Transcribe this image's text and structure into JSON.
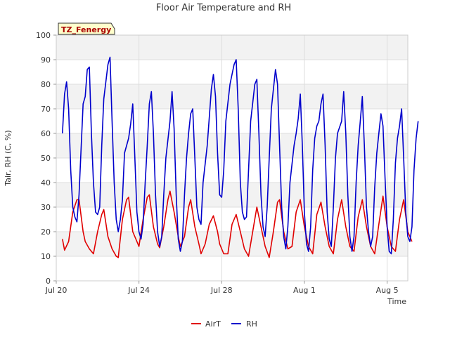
{
  "chart_data": {
    "type": "line",
    "title": "Floor Air Temperature and RH",
    "xlabel": "Time",
    "ylabel": "Tair, RH (C, %)",
    "ylim": [
      0,
      100
    ],
    "xlim_days": [
      0,
      17
    ],
    "yticks": [
      0,
      10,
      20,
      30,
      40,
      50,
      60,
      70,
      80,
      90,
      100
    ],
    "xticks": [
      {
        "day": 0,
        "label": "Jul 20"
      },
      {
        "day": 4,
        "label": "Jul 24"
      },
      {
        "day": 8,
        "label": "Jul 28"
      },
      {
        "day": 12,
        "label": "Aug 1"
      },
      {
        "day": 16,
        "label": "Aug 5"
      }
    ],
    "annotation": "TZ_Fenergy",
    "legend_position": "bottom-center",
    "grid": true,
    "series": [
      {
        "name": "AirT",
        "color": "#e00000",
        "points": [
          [
            0.3,
            17
          ],
          [
            0.4,
            12.5
          ],
          [
            0.6,
            16
          ],
          [
            0.8,
            28
          ],
          [
            1.0,
            33
          ],
          [
            1.1,
            33
          ],
          [
            1.3,
            20
          ],
          [
            1.4,
            16
          ],
          [
            1.6,
            13
          ],
          [
            1.8,
            11
          ],
          [
            2.0,
            20
          ],
          [
            2.2,
            27
          ],
          [
            2.3,
            29
          ],
          [
            2.5,
            18
          ],
          [
            2.7,
            13
          ],
          [
            2.9,
            10
          ],
          [
            3.0,
            9.5
          ],
          [
            3.2,
            25
          ],
          [
            3.4,
            33
          ],
          [
            3.5,
            34
          ],
          [
            3.7,
            20
          ],
          [
            3.9,
            16
          ],
          [
            4.0,
            14
          ],
          [
            4.2,
            25
          ],
          [
            4.4,
            34
          ],
          [
            4.5,
            35
          ],
          [
            4.7,
            22
          ],
          [
            4.9,
            15
          ],
          [
            5.0,
            13.5
          ],
          [
            5.2,
            22
          ],
          [
            5.4,
            33
          ],
          [
            5.5,
            36.5
          ],
          [
            5.7,
            28
          ],
          [
            5.9,
            18
          ],
          [
            6.0,
            14
          ],
          [
            6.2,
            18
          ],
          [
            6.4,
            30
          ],
          [
            6.5,
            33
          ],
          [
            6.7,
            22
          ],
          [
            6.9,
            15
          ],
          [
            7.0,
            11
          ],
          [
            7.2,
            15
          ],
          [
            7.4,
            23
          ],
          [
            7.6,
            26.5
          ],
          [
            7.8,
            20
          ],
          [
            7.9,
            15
          ],
          [
            8.1,
            11
          ],
          [
            8.3,
            11
          ],
          [
            8.5,
            23
          ],
          [
            8.7,
            27
          ],
          [
            8.9,
            20
          ],
          [
            9.1,
            13
          ],
          [
            9.3,
            10
          ],
          [
            9.5,
            20
          ],
          [
            9.7,
            30
          ],
          [
            9.9,
            22
          ],
          [
            10.1,
            14
          ],
          [
            10.3,
            9.5
          ],
          [
            10.5,
            20
          ],
          [
            10.7,
            32
          ],
          [
            10.8,
            33
          ],
          [
            11.0,
            20
          ],
          [
            11.2,
            13
          ],
          [
            11.4,
            14
          ],
          [
            11.6,
            28
          ],
          [
            11.8,
            33
          ],
          [
            12.0,
            22
          ],
          [
            12.2,
            14
          ],
          [
            12.4,
            11
          ],
          [
            12.6,
            27
          ],
          [
            12.8,
            32
          ],
          [
            13.0,
            22
          ],
          [
            13.2,
            14
          ],
          [
            13.4,
            11
          ],
          [
            13.6,
            25
          ],
          [
            13.8,
            33
          ],
          [
            14.0,
            22
          ],
          [
            14.2,
            14
          ],
          [
            14.4,
            12
          ],
          [
            14.6,
            26
          ],
          [
            14.8,
            33
          ],
          [
            15.0,
            22
          ],
          [
            15.2,
            14
          ],
          [
            15.4,
            11
          ],
          [
            15.6,
            23
          ],
          [
            15.8,
            34.5
          ],
          [
            16.0,
            22
          ],
          [
            16.2,
            14
          ],
          [
            16.4,
            12
          ],
          [
            16.6,
            25
          ],
          [
            16.8,
            33
          ],
          [
            17.0,
            20
          ],
          [
            17.2,
            16
          ]
        ]
      },
      {
        "name": "RH",
        "color": "#0000cc",
        "points": [
          [
            0.3,
            60
          ],
          [
            0.4,
            76
          ],
          [
            0.5,
            81
          ],
          [
            0.6,
            70
          ],
          [
            0.7,
            45
          ],
          [
            0.8,
            30
          ],
          [
            0.9,
            26
          ],
          [
            1.0,
            24
          ],
          [
            1.1,
            35
          ],
          [
            1.3,
            72
          ],
          [
            1.4,
            75
          ],
          [
            1.5,
            86
          ],
          [
            1.6,
            87
          ],
          [
            1.7,
            60
          ],
          [
            1.8,
            40
          ],
          [
            1.9,
            28
          ],
          [
            2.0,
            27
          ],
          [
            2.1,
            30
          ],
          [
            2.2,
            55
          ],
          [
            2.3,
            74
          ],
          [
            2.5,
            88
          ],
          [
            2.6,
            91
          ],
          [
            2.7,
            65
          ],
          [
            2.8,
            40
          ],
          [
            2.9,
            25
          ],
          [
            3.0,
            20
          ],
          [
            3.1,
            25
          ],
          [
            3.2,
            33
          ],
          [
            3.3,
            52
          ],
          [
            3.5,
            58
          ],
          [
            3.6,
            64
          ],
          [
            3.7,
            72
          ],
          [
            3.8,
            50
          ],
          [
            3.9,
            28
          ],
          [
            4.0,
            20
          ],
          [
            4.1,
            17
          ],
          [
            4.2,
            23
          ],
          [
            4.3,
            40
          ],
          [
            4.4,
            55
          ],
          [
            4.5,
            72
          ],
          [
            4.6,
            77
          ],
          [
            4.7,
            60
          ],
          [
            4.8,
            35
          ],
          [
            4.9,
            20
          ],
          [
            5.0,
            14
          ],
          [
            5.1,
            18
          ],
          [
            5.2,
            35
          ],
          [
            5.3,
            50
          ],
          [
            5.5,
            65
          ],
          [
            5.6,
            77
          ],
          [
            5.7,
            62
          ],
          [
            5.8,
            35
          ],
          [
            5.9,
            17
          ],
          [
            6.0,
            12
          ],
          [
            6.1,
            16
          ],
          [
            6.2,
            35
          ],
          [
            6.3,
            50
          ],
          [
            6.4,
            60
          ],
          [
            6.5,
            68
          ],
          [
            6.6,
            70
          ],
          [
            6.7,
            50
          ],
          [
            6.8,
            30
          ],
          [
            6.9,
            25
          ],
          [
            7.0,
            23
          ],
          [
            7.1,
            40
          ],
          [
            7.3,
            55
          ],
          [
            7.5,
            78
          ],
          [
            7.6,
            84
          ],
          [
            7.7,
            75
          ],
          [
            7.8,
            52
          ],
          [
            7.9,
            35
          ],
          [
            8.0,
            34
          ],
          [
            8.1,
            45
          ],
          [
            8.2,
            65
          ],
          [
            8.4,
            80
          ],
          [
            8.6,
            88
          ],
          [
            8.7,
            90
          ],
          [
            8.8,
            70
          ],
          [
            8.9,
            40
          ],
          [
            9.0,
            28
          ],
          [
            9.1,
            25
          ],
          [
            9.2,
            26
          ],
          [
            9.3,
            45
          ],
          [
            9.4,
            65
          ],
          [
            9.6,
            80
          ],
          [
            9.7,
            82
          ],
          [
            9.8,
            60
          ],
          [
            9.9,
            35
          ],
          [
            10.0,
            22
          ],
          [
            10.1,
            18
          ],
          [
            10.2,
            30
          ],
          [
            10.3,
            50
          ],
          [
            10.4,
            70
          ],
          [
            10.6,
            86
          ],
          [
            10.7,
            80
          ],
          [
            10.8,
            55
          ],
          [
            10.9,
            30
          ],
          [
            11.0,
            18
          ],
          [
            11.1,
            13
          ],
          [
            11.2,
            22
          ],
          [
            11.3,
            40
          ],
          [
            11.5,
            55
          ],
          [
            11.6,
            60
          ],
          [
            11.7,
            66
          ],
          [
            11.8,
            76
          ],
          [
            11.9,
            55
          ],
          [
            12.0,
            28
          ],
          [
            12.1,
            15
          ],
          [
            12.2,
            12
          ],
          [
            12.3,
            22
          ],
          [
            12.4,
            45
          ],
          [
            12.5,
            58
          ],
          [
            12.6,
            63
          ],
          [
            12.7,
            65
          ],
          [
            12.8,
            72
          ],
          [
            12.9,
            76
          ],
          [
            13.0,
            55
          ],
          [
            13.1,
            28
          ],
          [
            13.2,
            17
          ],
          [
            13.3,
            14
          ],
          [
            13.4,
            30
          ],
          [
            13.5,
            50
          ],
          [
            13.6,
            60
          ],
          [
            13.8,
            65
          ],
          [
            13.9,
            77
          ],
          [
            14.0,
            60
          ],
          [
            14.1,
            35
          ],
          [
            14.2,
            18
          ],
          [
            14.3,
            12
          ],
          [
            14.4,
            18
          ],
          [
            14.5,
            40
          ],
          [
            14.6,
            55
          ],
          [
            14.7,
            65
          ],
          [
            14.8,
            75
          ],
          [
            14.9,
            55
          ],
          [
            15.0,
            30
          ],
          [
            15.1,
            20
          ],
          [
            15.2,
            14
          ],
          [
            15.3,
            18
          ],
          [
            15.4,
            38
          ],
          [
            15.5,
            52
          ],
          [
            15.6,
            60
          ],
          [
            15.7,
            68
          ],
          [
            15.8,
            63
          ],
          [
            15.9,
            42
          ],
          [
            16.0,
            22
          ],
          [
            16.1,
            12
          ],
          [
            16.2,
            11
          ],
          [
            16.3,
            25
          ],
          [
            16.4,
            48
          ],
          [
            16.5,
            58
          ],
          [
            16.6,
            63
          ],
          [
            16.7,
            70
          ],
          [
            16.8,
            50
          ],
          [
            16.9,
            28
          ],
          [
            17.0,
            18
          ],
          [
            17.1,
            16
          ],
          [
            17.2,
            22
          ],
          [
            17.3,
            45
          ],
          [
            17.4,
            58
          ],
          [
            17.5,
            65
          ]
        ]
      }
    ]
  }
}
